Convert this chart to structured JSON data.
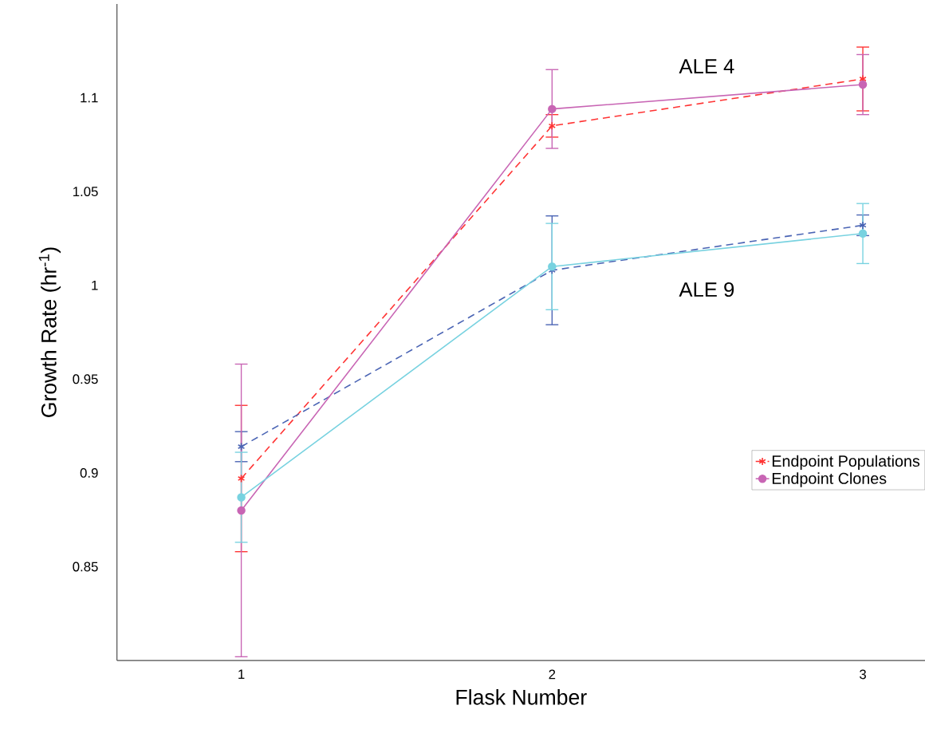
{
  "chart_data": {
    "type": "line",
    "xlabel": "Flask Number",
    "ylabel": "Growth Rate (hr$^{-1}$)",
    "x": [
      1,
      2,
      3
    ],
    "series": [
      {
        "name": "Endpoint Populations",
        "color": "#ff3333",
        "marker": "cross",
        "line_style": "dashed",
        "values": [
          0.897,
          1.085,
          1.11
        ],
        "errors": [
          0.039,
          0.006,
          0.017
        ]
      },
      {
        "color": "#4a64b4",
        "marker": "cross",
        "line_style": "dashed",
        "values": [
          0.914,
          1.008,
          1.032
        ],
        "errors": [
          0.008,
          0.029,
          0.0055
        ]
      },
      {
        "name": "Endpoint Clones",
        "color": "#c865b4",
        "marker": "circle",
        "line_style": "solid",
        "values": [
          0.88,
          1.094,
          1.107
        ],
        "errors": [
          0.078,
          0.021,
          0.016
        ]
      },
      {
        "color": "#78d2e0",
        "marker": "circle",
        "line_style": "solid",
        "values": [
          0.887,
          1.01,
          1.0276
        ],
        "errors": [
          0.024,
          0.023,
          0.016
        ]
      }
    ],
    "xlim": [
      0.6,
      3.2
    ],
    "ylim": [
      0.8,
      1.15
    ],
    "xticks": [
      1,
      2,
      3
    ],
    "yticks": [
      0.85,
      0.9,
      0.95,
      1,
      1.05,
      1.1
    ],
    "annotations": [
      "ALE 4",
      "ALE 9"
    ],
    "legend": "right",
    "grid": false
  }
}
